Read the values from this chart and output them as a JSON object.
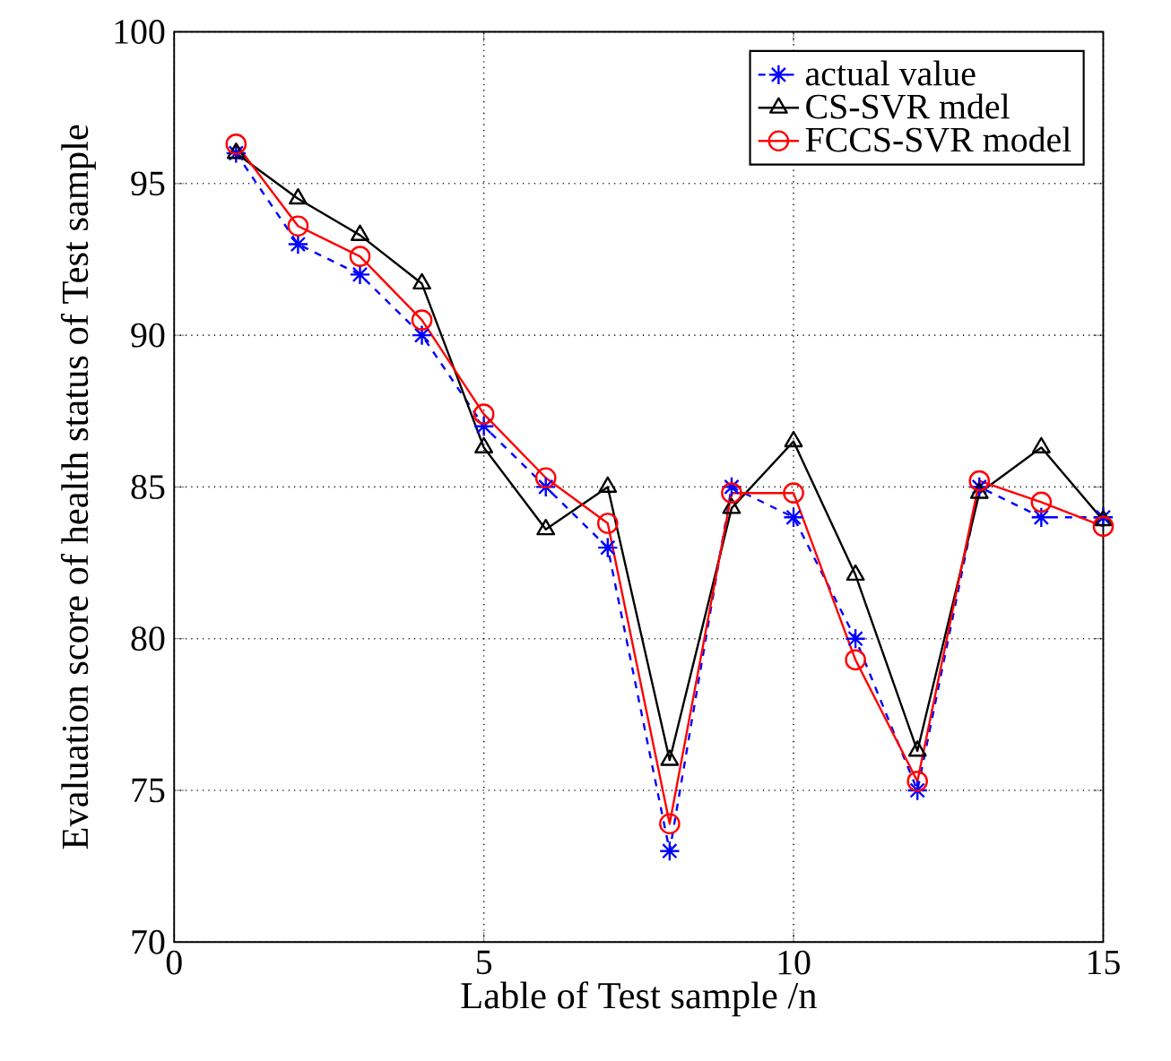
{
  "chart_data": {
    "type": "line",
    "xlabel": "Lable of Test sample /n",
    "ylabel": "Evaluation score of health status of Test sample",
    "x": [
      1,
      2,
      3,
      4,
      5,
      6,
      7,
      8,
      9,
      10,
      11,
      12,
      13,
      14,
      15
    ],
    "series": [
      {
        "name": "actual value",
        "color": "#0000ff",
        "marker": "cross",
        "line_style": "dashed",
        "values": [
          96,
          93,
          92,
          90,
          87,
          85,
          83,
          73,
          85,
          84,
          80,
          75,
          85,
          84,
          84
        ]
      },
      {
        "name": "CS-SVR mdel",
        "color": "#000000",
        "marker": "triangle",
        "line_style": "solid",
        "values": [
          96,
          94.5,
          93.3,
          91.7,
          86.3,
          83.6,
          85,
          76,
          84.3,
          86.5,
          82.1,
          76.3,
          84.8,
          86.3,
          83.9
        ]
      },
      {
        "name": "FCCS-SVR model",
        "color": "#ff0000",
        "marker": "circle",
        "line_style": "solid",
        "values": [
          96.3,
          93.6,
          92.6,
          90.5,
          87.4,
          85.3,
          83.8,
          73.9,
          84.8,
          84.8,
          79.3,
          75.3,
          85.2,
          84.5,
          83.7
        ]
      }
    ],
    "xlim": [
      0,
      15
    ],
    "ylim": [
      70,
      100
    ],
    "xticks": [
      0,
      5,
      10,
      15
    ],
    "yticks": [
      70,
      75,
      80,
      85,
      90,
      95,
      100
    ],
    "grid": true,
    "legend": "top right"
  }
}
